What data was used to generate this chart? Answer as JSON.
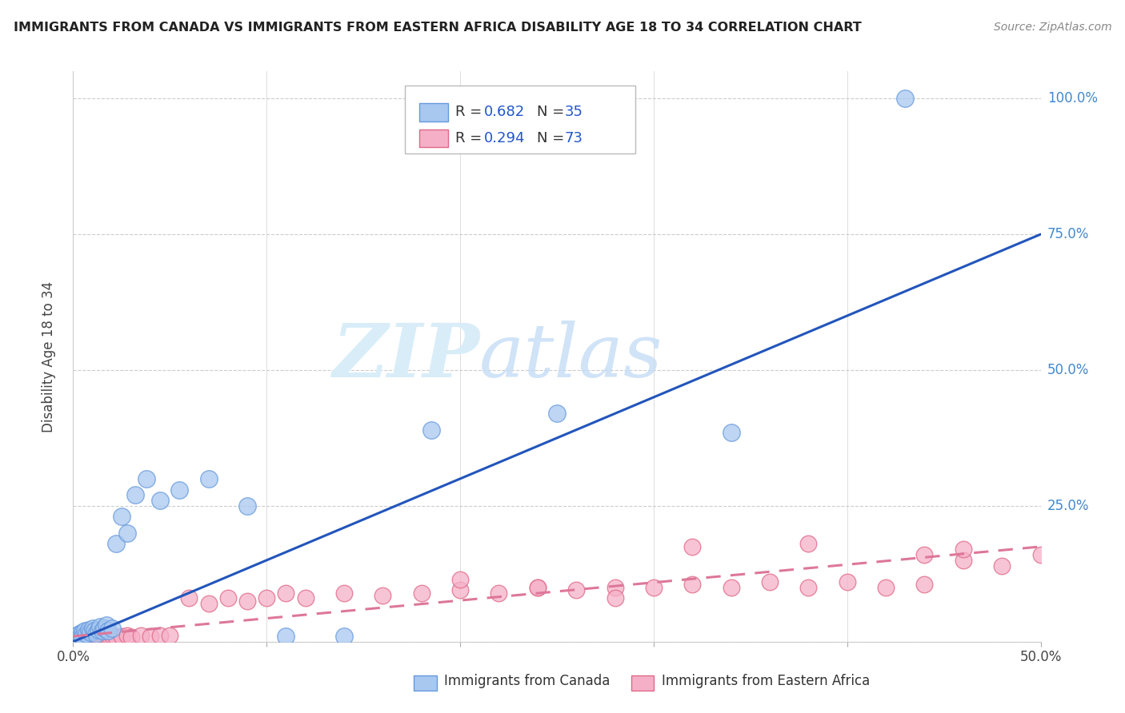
{
  "title": "IMMIGRANTS FROM CANADA VS IMMIGRANTS FROM EASTERN AFRICA DISABILITY AGE 18 TO 34 CORRELATION CHART",
  "source": "Source: ZipAtlas.com",
  "ylabel": "Disability Age 18 to 34",
  "xlim": [
    0.0,
    0.5
  ],
  "ylim": [
    0.0,
    1.05
  ],
  "watermark_zip": "ZIP",
  "watermark_atlas": "atlas",
  "canada_color": "#a8c8f0",
  "canada_edge_color": "#6699dd",
  "eastern_africa_color": "#f5b0c8",
  "eastern_africa_edge_color": "#e06888",
  "canada_line_color": "#2255bb",
  "eastern_africa_line_color": "#dd7799",
  "canada_R": 0.682,
  "canada_N": 35,
  "eastern_africa_R": 0.294,
  "eastern_africa_N": 73,
  "canada_line_x0": 0.0,
  "canada_line_y0": 0.0,
  "canada_line_x1": 0.5,
  "canada_line_y1": 0.75,
  "ea_line_x0": 0.0,
  "ea_line_y0": 0.01,
  "ea_line_x1": 0.5,
  "ea_line_y1": 0.175,
  "canada_x": [
    0.001,
    0.002,
    0.003,
    0.004,
    0.005,
    0.005,
    0.006,
    0.007,
    0.008,
    0.009,
    0.01,
    0.011,
    0.012,
    0.013,
    0.014,
    0.015,
    0.016,
    0.017,
    0.018,
    0.02,
    0.022,
    0.025,
    0.028,
    0.032,
    0.038,
    0.045,
    0.055,
    0.07,
    0.09,
    0.11,
    0.14,
    0.185,
    0.25,
    0.34,
    0.43
  ],
  "canada_y": [
    0.01,
    0.012,
    0.015,
    0.012,
    0.018,
    0.008,
    0.02,
    0.015,
    0.022,
    0.018,
    0.025,
    0.02,
    0.015,
    0.022,
    0.028,
    0.02,
    0.025,
    0.03,
    0.02,
    0.025,
    0.18,
    0.23,
    0.2,
    0.27,
    0.3,
    0.26,
    0.28,
    0.3,
    0.25,
    0.01,
    0.01,
    0.39,
    0.42,
    0.385,
    1.0
  ],
  "eastern_africa_x": [
    0.001,
    0.002,
    0.003,
    0.003,
    0.004,
    0.004,
    0.005,
    0.005,
    0.006,
    0.006,
    0.007,
    0.007,
    0.008,
    0.008,
    0.009,
    0.009,
    0.01,
    0.01,
    0.011,
    0.011,
    0.012,
    0.012,
    0.013,
    0.013,
    0.014,
    0.015,
    0.015,
    0.016,
    0.017,
    0.018,
    0.019,
    0.02,
    0.022,
    0.025,
    0.028,
    0.03,
    0.035,
    0.04,
    0.045,
    0.05,
    0.06,
    0.07,
    0.08,
    0.09,
    0.1,
    0.11,
    0.12,
    0.14,
    0.16,
    0.18,
    0.2,
    0.22,
    0.24,
    0.26,
    0.28,
    0.3,
    0.32,
    0.34,
    0.36,
    0.38,
    0.4,
    0.42,
    0.44,
    0.46,
    0.48,
    0.5,
    0.46,
    0.44,
    0.38,
    0.32,
    0.28,
    0.24,
    0.2
  ],
  "eastern_africa_y": [
    0.005,
    0.008,
    0.006,
    0.01,
    0.007,
    0.012,
    0.008,
    0.014,
    0.009,
    0.015,
    0.01,
    0.016,
    0.009,
    0.015,
    0.01,
    0.016,
    0.008,
    0.014,
    0.009,
    0.013,
    0.008,
    0.012,
    0.009,
    0.015,
    0.01,
    0.008,
    0.014,
    0.01,
    0.012,
    0.008,
    0.01,
    0.012,
    0.008,
    0.01,
    0.012,
    0.009,
    0.011,
    0.01,
    0.012,
    0.011,
    0.08,
    0.07,
    0.08,
    0.075,
    0.08,
    0.09,
    0.08,
    0.09,
    0.085,
    0.09,
    0.095,
    0.09,
    0.1,
    0.095,
    0.1,
    0.1,
    0.105,
    0.1,
    0.11,
    0.1,
    0.11,
    0.1,
    0.105,
    0.15,
    0.14,
    0.16,
    0.17,
    0.16,
    0.18,
    0.175,
    0.08,
    0.1,
    0.115
  ]
}
